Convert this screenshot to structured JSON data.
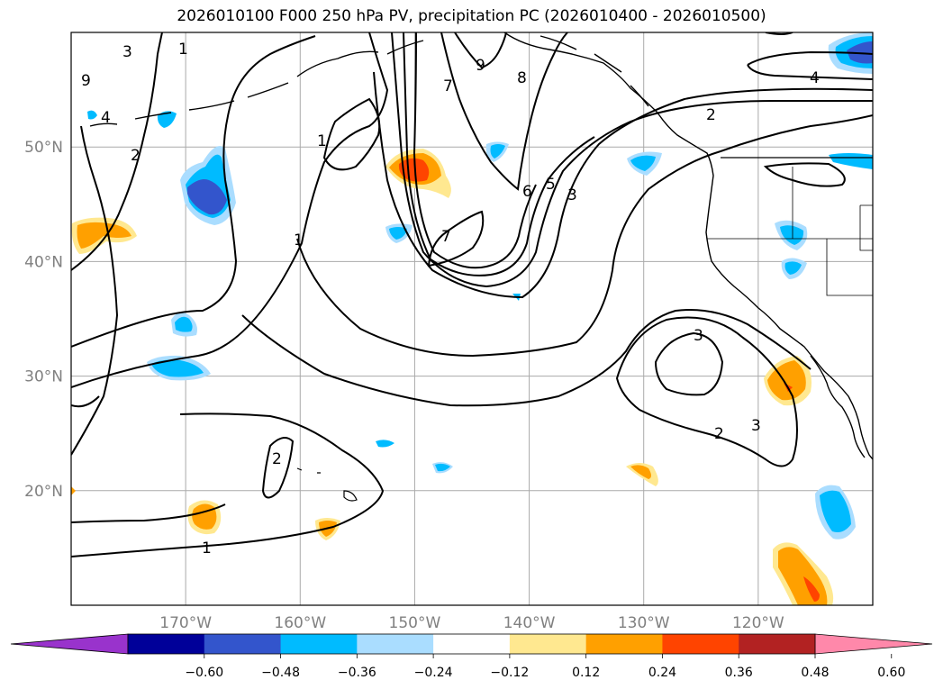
{
  "title": "2026010100 F000 250 hPa PV, precipitation PC (2026010400 - 2026010500)",
  "map": {
    "projection": "plate-carree",
    "lon_range": [
      -180,
      -110
    ],
    "lat_range": [
      10,
      60
    ],
    "lat_labels": [
      {
        "text": "20°N",
        "lat": 20
      },
      {
        "text": "30°N",
        "lat": 30
      },
      {
        "text": "40°N",
        "lat": 40
      },
      {
        "text": "50°N",
        "lat": 50
      }
    ],
    "lon_labels": [
      {
        "text": "170°W",
        "lon": -170
      },
      {
        "text": "160°W",
        "lon": -160
      },
      {
        "text": "150°W",
        "lon": -150
      },
      {
        "text": "140°W",
        "lon": -140
      },
      {
        "text": "130°W",
        "lon": -130
      },
      {
        "text": "120°W",
        "lon": -120
      }
    ],
    "gridlines": true,
    "pv_contour_labels": [
      "1",
      "1",
      "1",
      "1",
      "2",
      "2",
      "2",
      "2",
      "3",
      "3",
      "3",
      "3",
      "4",
      "4",
      "5",
      "6",
      "7",
      "7",
      "8",
      "9",
      "9"
    ]
  },
  "colorbar": {
    "ticks": [
      "−0.60",
      "−0.48",
      "−0.36",
      "−0.24",
      "−0.12",
      "0.12",
      "0.24",
      "0.36",
      "0.48",
      "0.60"
    ],
    "colors": [
      "#9933cc",
      "#000099",
      "#3355cc",
      "#00bbff",
      "#aaddff",
      "#ffffff",
      "#ffe890",
      "#ffa000",
      "#ff4400",
      "#b22222",
      "#ff88aa"
    ],
    "extend": "both"
  },
  "colors": {
    "grid": "#aaaaaa",
    "contour": "#000000",
    "label": "#808080"
  }
}
